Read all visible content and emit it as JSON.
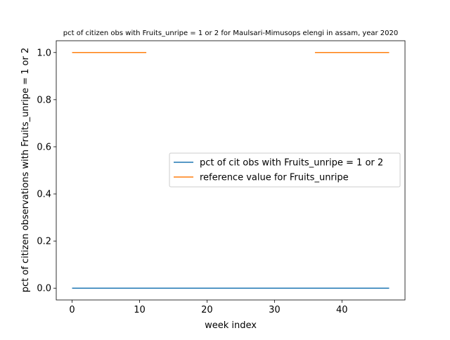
{
  "chart_data": {
    "type": "line",
    "title": "pct of citizen obs with Fruits_unripe = 1 or 2 for Maulsari-Mimusops elengi in assam, year 2020",
    "xlabel": "week index",
    "ylabel": "pct of citizen observations with Fruits_unripe = 1 or 2",
    "xlim": [
      -2.35,
      49.35
    ],
    "ylim": [
      -0.05,
      1.05
    ],
    "xticks": [
      0,
      10,
      20,
      30,
      40
    ],
    "yticks": [
      0.0,
      0.2,
      0.4,
      0.6,
      0.8,
      1.0
    ],
    "xtick_labels": [
      "0",
      "10",
      "20",
      "30",
      "40"
    ],
    "ytick_labels": [
      "0.0",
      "0.2",
      "0.4",
      "0.6",
      "0.8",
      "1.0"
    ],
    "grid": false,
    "legend_position": "center-right",
    "series": [
      {
        "name": "pct of cit obs with Fruits_unripe = 1 or 2",
        "color": "#1f77b4",
        "segments": [
          [
            [
              0,
              0.0
            ],
            [
              47,
              0.0
            ]
          ]
        ]
      },
      {
        "name": "reference value for Fruits_unripe",
        "color": "#ff7f0e",
        "segments": [
          [
            [
              0,
              1.0
            ],
            [
              11,
              1.0
            ]
          ],
          [
            [
              36,
              1.0
            ],
            [
              47,
              1.0
            ]
          ]
        ]
      }
    ]
  }
}
